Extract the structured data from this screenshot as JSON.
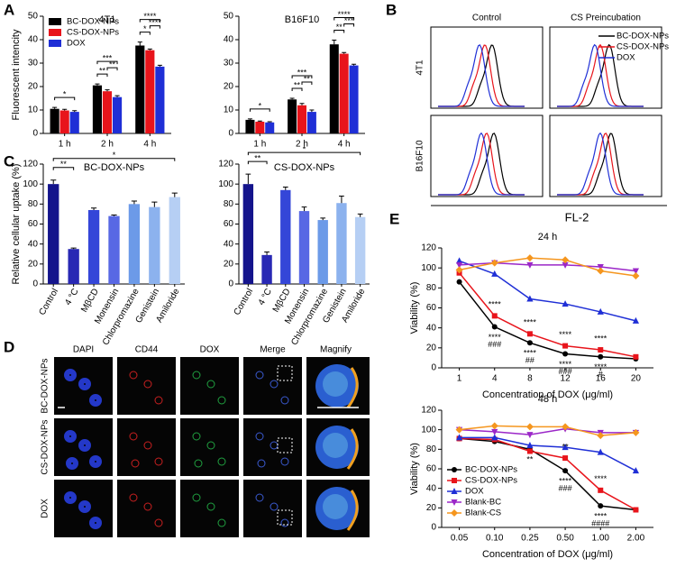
{
  "panel_labels": [
    "A",
    "B",
    "C",
    "D",
    "E"
  ],
  "flow": {
    "columns": [
      "Control",
      "CS Preincubation"
    ],
    "rows": [
      "4T1",
      "B16F10"
    ],
    "xlabel": "FL-2",
    "legend": [
      {
        "name": "BC-DOX-NPs",
        "color": "#000000"
      },
      {
        "name": "CS-DOX-NPs",
        "color": "#e8141b"
      },
      {
        "name": "DOX",
        "color": "#1f2fd6"
      }
    ]
  },
  "microscopy": {
    "columns": [
      "DAPI",
      "CD44",
      "DOX",
      "Merge",
      "Magnify"
    ],
    "rows": [
      "BC-DOX-NPs",
      "CS-DOX-NPs",
      "DOX"
    ]
  },
  "chart_data": [
    {
      "type": "bar",
      "title": "4T1",
      "ylabel": "Fluorescent intencity",
      "categories": [
        "1 h",
        "2 h",
        "4 h"
      ],
      "series": [
        {
          "name": "BC-DOX-NPs",
          "color": "#000000",
          "values": [
            10.5,
            20.5,
            37.5
          ],
          "errors": [
            0.6,
            0.6,
            1.5
          ]
        },
        {
          "name": "CS-DOX-NPs",
          "color": "#e8141b",
          "values": [
            9.8,
            18,
            35.5
          ],
          "errors": [
            0.5,
            0.6,
            0.5
          ]
        },
        {
          "name": "DOX",
          "color": "#1f2fd6",
          "values": [
            9.2,
            15.5,
            28.5
          ],
          "errors": [
            0.5,
            0.6,
            0.6
          ]
        }
      ],
      "ylim": [
        0,
        50
      ],
      "yticks": [
        0,
        10,
        20,
        30,
        40,
        50
      ],
      "legend": "upper left",
      "annotations": [
        {
          "label": "*",
          "category": 0,
          "between": [
            0,
            2
          ]
        },
        {
          "label": "**",
          "category": 1,
          "between": [
            0,
            1
          ]
        },
        {
          "label": "**",
          "category": 1,
          "between": [
            1,
            2
          ]
        },
        {
          "label": "***",
          "category": 1,
          "between": [
            0,
            2
          ]
        },
        {
          "label": "*",
          "category": 2,
          "between": [
            0,
            1
          ]
        },
        {
          "label": "****",
          "category": 2,
          "between": [
            1,
            2
          ]
        },
        {
          "label": "****",
          "category": 2,
          "between": [
            0,
            2
          ]
        }
      ]
    },
    {
      "type": "bar",
      "title": "B16F10",
      "categories": [
        "1 h",
        "2 h",
        "4 h"
      ],
      "series": [
        {
          "color": "#000000",
          "values": [
            5.8,
            14.5,
            38
          ],
          "errors": [
            0.4,
            0.5,
            1.8
          ]
        },
        {
          "color": "#e8141b",
          "values": [
            5,
            12,
            34
          ],
          "errors": [
            0.3,
            0.8,
            0.5
          ]
        },
        {
          "color": "#1f2fd6",
          "values": [
            4.7,
            9.2,
            29
          ],
          "errors": [
            0.3,
            0.8,
            0.5
          ]
        }
      ],
      "ylim": [
        0,
        50
      ],
      "yticks": [
        0,
        10,
        20,
        30,
        40,
        50
      ],
      "annotations": [
        {
          "label": "*",
          "category": 0,
          "between": [
            0,
            2
          ]
        },
        {
          "label": "**",
          "category": 1,
          "between": [
            0,
            1
          ]
        },
        {
          "label": "**",
          "category": 1,
          "between": [
            1,
            2
          ]
        },
        {
          "label": "***",
          "category": 1,
          "between": [
            0,
            2
          ]
        },
        {
          "label": "**",
          "category": 2,
          "between": [
            0,
            1
          ]
        },
        {
          "label": "***",
          "category": 2,
          "between": [
            1,
            2
          ]
        },
        {
          "label": "****",
          "category": 2,
          "between": [
            0,
            2
          ]
        }
      ]
    },
    {
      "type": "bar",
      "title": "BC-DOX-NPs",
      "ylabel": "Relative cellular uptake (%)",
      "categories": [
        "Control",
        "4 °C",
        "MβCD",
        "Monensin",
        "Chlorpromazine",
        "Genistein",
        "Amiloride"
      ],
      "values": [
        100,
        35,
        74,
        68,
        80,
        77,
        87
      ],
      "errors": [
        4,
        1,
        2,
        1,
        3,
        5,
        4
      ],
      "colors": [
        "#14148c",
        "#2828b4",
        "#3446d8",
        "#5868e4",
        "#6c9ae8",
        "#8cb2ee",
        "#b6cff4"
      ],
      "ylim": [
        0,
        120
      ],
      "yticks": [
        0,
        20,
        40,
        60,
        80,
        100,
        120
      ],
      "annotations": [
        {
          "label": "**",
          "between": [
            0,
            1
          ]
        },
        {
          "label": "*",
          "between": [
            0,
            6
          ]
        }
      ]
    },
    {
      "type": "bar",
      "title": "CS-DOX-NPs",
      "categories": [
        "Control",
        "4 °C",
        "MβCD",
        "Monensin",
        "Chlorpromazine",
        "Genistein",
        "Amiloride"
      ],
      "values": [
        100,
        29,
        94,
        73,
        64,
        81,
        67
      ],
      "errors": [
        10,
        3,
        3,
        4,
        2,
        7,
        3
      ],
      "colors": [
        "#14148c",
        "#2828b4",
        "#3446d8",
        "#5868e4",
        "#6c9ae8",
        "#8cb2ee",
        "#b6cff4"
      ],
      "ylim": [
        0,
        120
      ],
      "yticks": [
        0,
        20,
        40,
        60,
        80,
        100,
        120
      ],
      "annotations": [
        {
          "label": "**",
          "between": [
            0,
            1
          ]
        },
        {
          "label": "*",
          "between": [
            0,
            6
          ]
        }
      ]
    },
    {
      "type": "line",
      "title": "24 h",
      "ylabel": "Viability (%)",
      "xlabel": "Concentration of DOX (μg/ml)",
      "categories": [
        "1",
        "4",
        "8",
        "12",
        "16",
        "20"
      ],
      "series": [
        {
          "color": "#000000",
          "marker": "circle",
          "values": [
            86,
            41,
            25,
            14,
            11,
            9
          ]
        },
        {
          "color": "#e8141b",
          "marker": "square",
          "values": [
            95,
            52,
            34,
            22,
            18,
            11
          ]
        },
        {
          "color": "#1f2fd6",
          "marker": "triangle",
          "values": [
            107,
            94,
            69,
            64,
            56,
            47
          ]
        },
        {
          "color": "#9b27c8",
          "marker": "triangle-down",
          "values": [
            103,
            105,
            103,
            103,
            101,
            97
          ]
        },
        {
          "color": "#f5961e",
          "marker": "diamond",
          "values": [
            98,
            105,
            110,
            108,
            97,
            92
          ]
        }
      ],
      "ylim": [
        0,
        120
      ],
      "yticks": [
        0,
        20,
        40,
        60,
        80,
        100,
        120
      ],
      "annotations": [
        {
          "label": "****",
          "category": 1,
          "series": 1,
          "side": "above"
        },
        {
          "label": "****",
          "category": 1,
          "series": 0,
          "side": "below"
        },
        {
          "label": "###",
          "category": 1,
          "series": 0,
          "side": "below"
        },
        {
          "label": "****",
          "category": 2,
          "series": 1,
          "side": "above"
        },
        {
          "label": "****",
          "category": 2,
          "series": 0,
          "side": "below"
        },
        {
          "label": "##",
          "category": 2,
          "series": 0,
          "side": "below"
        },
        {
          "label": "****",
          "category": 3,
          "series": 1,
          "side": "above"
        },
        {
          "label": "****",
          "category": 3,
          "series": 0,
          "side": "below"
        },
        {
          "label": "###",
          "category": 3,
          "series": 0,
          "side": "below"
        },
        {
          "label": "****",
          "category": 4,
          "series": 1,
          "side": "above"
        },
        {
          "label": "****",
          "category": 4,
          "series": 0,
          "side": "below"
        },
        {
          "label": "#",
          "category": 4,
          "series": 0,
          "side": "below"
        }
      ]
    },
    {
      "type": "line",
      "title": "48 h",
      "ylabel": "Viability (%)",
      "xlabel": "Concentration of DOX (μg/ml)",
      "categories": [
        "0.05",
        "0.10",
        "0.25",
        "0.50",
        "1.00",
        "2.00"
      ],
      "series": [
        {
          "name": "BC-DOX-NPs",
          "color": "#000000",
          "marker": "circle",
          "values": [
            91,
            88,
            80,
            58,
            22,
            18
          ]
        },
        {
          "name": "CS-DOX-NPs",
          "color": "#e8141b",
          "marker": "square",
          "values": [
            91,
            90,
            78,
            71,
            38,
            18
          ]
        },
        {
          "name": "DOX",
          "color": "#1f2fd6",
          "marker": "triangle",
          "values": [
            92,
            92,
            84,
            82,
            77,
            58
          ]
        },
        {
          "name": "Blank-BC",
          "color": "#9b27c8",
          "marker": "triangle-down",
          "values": [
            100,
            98,
            95,
            101,
            97,
            97
          ]
        },
        {
          "name": "Blank-CS",
          "color": "#f5961e",
          "marker": "diamond",
          "values": [
            100,
            104,
            103,
            103,
            94,
            97
          ]
        }
      ],
      "ylim": [
        0,
        120
      ],
      "yticks": [
        0,
        20,
        40,
        60,
        80,
        100,
        120
      ],
      "legend": "lower left",
      "annotations": [
        {
          "label": "**",
          "category": 2,
          "series": 0,
          "side": "below"
        },
        {
          "label": "**",
          "category": 3,
          "series": 1,
          "side": "above"
        },
        {
          "label": "****",
          "category": 3,
          "series": 0,
          "side": "below"
        },
        {
          "label": "###",
          "category": 3,
          "series": 0,
          "side": "below"
        },
        {
          "label": "****",
          "category": 4,
          "series": 1,
          "side": "above"
        },
        {
          "label": "****",
          "category": 4,
          "series": 0,
          "side": "below"
        },
        {
          "label": "####",
          "category": 4,
          "series": 0,
          "side": "below"
        }
      ]
    }
  ]
}
